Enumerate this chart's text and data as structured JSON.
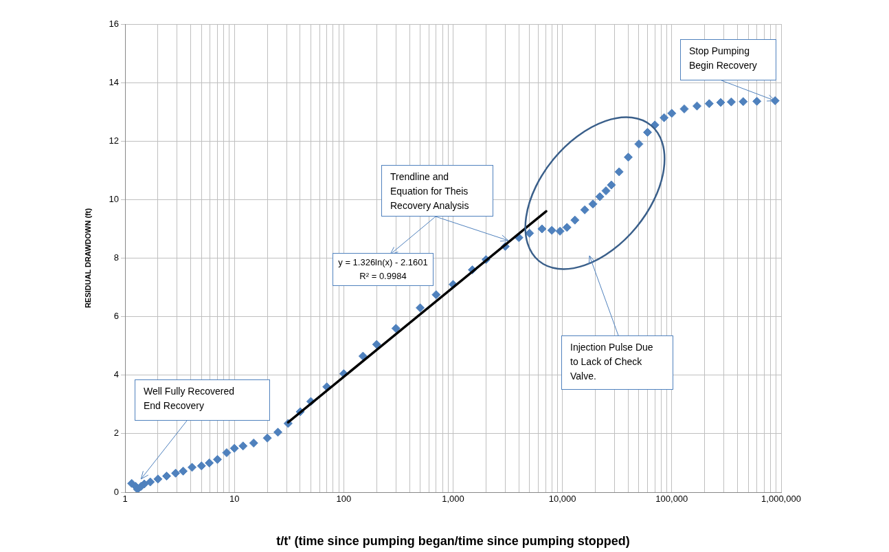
{
  "chart_data": {
    "type": "scatter",
    "xlabel": "t/t' (time since pumping began/time since pumping stopped)",
    "ylabel": "RESIDUAL DRAWDOWN (ft)",
    "log": "x",
    "grid": true,
    "marker": "diamond",
    "xlim": [
      1,
      1000000
    ],
    "ylim": [
      0,
      16
    ],
    "xticks": [
      1,
      {
        "value": 2,
        "label": null
      },
      {
        "value": 3,
        "label": null
      },
      {
        "value": 4,
        "label": null
      },
      {
        "value": 5,
        "label": null
      },
      {
        "value": 6,
        "label": null
      },
      {
        "value": 7,
        "label": null
      },
      {
        "value": 8,
        "label": null
      },
      {
        "value": 9,
        "label": null
      },
      10,
      {
        "value": 20,
        "label": null
      },
      {
        "value": 30,
        "label": null
      },
      {
        "value": 40,
        "label": null
      },
      {
        "value": 50,
        "label": null
      },
      {
        "value": 60,
        "label": null
      },
      {
        "value": 70,
        "label": null
      },
      {
        "value": 80,
        "label": null
      },
      {
        "value": 90,
        "label": null
      },
      100,
      {
        "value": 200,
        "label": null
      },
      {
        "value": 300,
        "label": null
      },
      {
        "value": 400,
        "label": null
      },
      {
        "value": 500,
        "label": null
      },
      {
        "value": 600,
        "label": null
      },
      {
        "value": 700,
        "label": null
      },
      {
        "value": 800,
        "label": null
      },
      {
        "value": 900,
        "label": null
      },
      {
        "value": 1000,
        "label": "1,000"
      },
      {
        "value": 2000,
        "label": null
      },
      {
        "value": 3000,
        "label": null
      },
      {
        "value": 4000,
        "label": null
      },
      {
        "value": 5000,
        "label": null
      },
      {
        "value": 6000,
        "label": null
      },
      {
        "value": 7000,
        "label": null
      },
      {
        "value": 8000,
        "label": null
      },
      {
        "value": 9000,
        "label": null
      },
      {
        "value": 10000,
        "label": "10,000"
      },
      {
        "value": 20000,
        "label": null
      },
      {
        "value": 30000,
        "label": null
      },
      {
        "value": 40000,
        "label": null
      },
      {
        "value": 50000,
        "label": null
      },
      {
        "value": 60000,
        "label": null
      },
      {
        "value": 70000,
        "label": null
      },
      {
        "value": 80000,
        "label": null
      },
      {
        "value": 90000,
        "label": null
      },
      {
        "value": 100000,
        "label": "100,000"
      },
      {
        "value": 200000,
        "label": null
      },
      {
        "value": 300000,
        "label": null
      },
      {
        "value": 400000,
        "label": null
      },
      {
        "value": 500000,
        "label": null
      },
      {
        "value": 600000,
        "label": null
      },
      {
        "value": 700000,
        "label": null
      },
      {
        "value": 800000,
        "label": null
      },
      {
        "value": 900000,
        "label": null
      },
      {
        "value": 1000000,
        "label": "1,000,000"
      }
    ],
    "yticks": [
      0,
      2,
      4,
      6,
      8,
      10,
      12,
      14,
      16
    ],
    "series": [
      {
        "color": "#4f81bd",
        "x": [
          1.15,
          1.25,
          1.3,
          1.4,
          1.5,
          1.7,
          2.0,
          2.4,
          2.9,
          3.4,
          4.1,
          5.0,
          5.9,
          7.0,
          8.5,
          10,
          12,
          15,
          20,
          25,
          31,
          40,
          50,
          70,
          100,
          150,
          200,
          300,
          500,
          700,
          1000,
          1500,
          2000,
          3000,
          4000,
          5000,
          6500,
          8000,
          9500,
          11000,
          13000,
          16000,
          19000,
          22000,
          25000,
          28000,
          33000,
          40000,
          50000,
          60000,
          70000,
          85000,
          100000,
          130000,
          170000,
          220000,
          280000,
          350000,
          450000,
          600000,
          880000
        ],
        "values": [
          0.3,
          0.2,
          0.1,
          0.2,
          0.28,
          0.35,
          0.45,
          0.55,
          0.65,
          0.72,
          0.85,
          0.9,
          1.0,
          1.12,
          1.35,
          1.5,
          1.58,
          1.68,
          1.85,
          2.05,
          2.35,
          2.75,
          3.1,
          3.6,
          4.05,
          4.65,
          5.05,
          5.6,
          6.3,
          6.75,
          7.1,
          7.6,
          7.95,
          8.4,
          8.7,
          8.85,
          9.0,
          8.95,
          8.92,
          9.05,
          9.3,
          9.65,
          9.85,
          10.1,
          10.3,
          10.5,
          10.95,
          11.45,
          11.9,
          12.3,
          12.55,
          12.8,
          12.95,
          13.1,
          13.2,
          13.28,
          13.32,
          13.34,
          13.35,
          13.36,
          13.38
        ]
      },
      {
        "type": "line",
        "color": "#000000",
        "marker": "none",
        "x": [
          31,
          7100
        ],
        "values": [
          2.39,
          9.6
        ]
      }
    ],
    "annotations": [
      {
        "text": "Stop Pumping Begin Recovery",
        "x": 880000,
        "y": 13.38
      },
      {
        "text": "Trendline and Equation for Theis Recovery Analysis",
        "x": 3200,
        "y": 8.6
      },
      "y = 1.326ln(x) - 2.1601",
      "R² = 0.9984",
      "Injection Pulse Due to Lack of Check Valve.",
      {
        "text": "Well Fully Recovered End Recovery",
        "x": 1.4,
        "y": 0.45
      }
    ]
  }
}
